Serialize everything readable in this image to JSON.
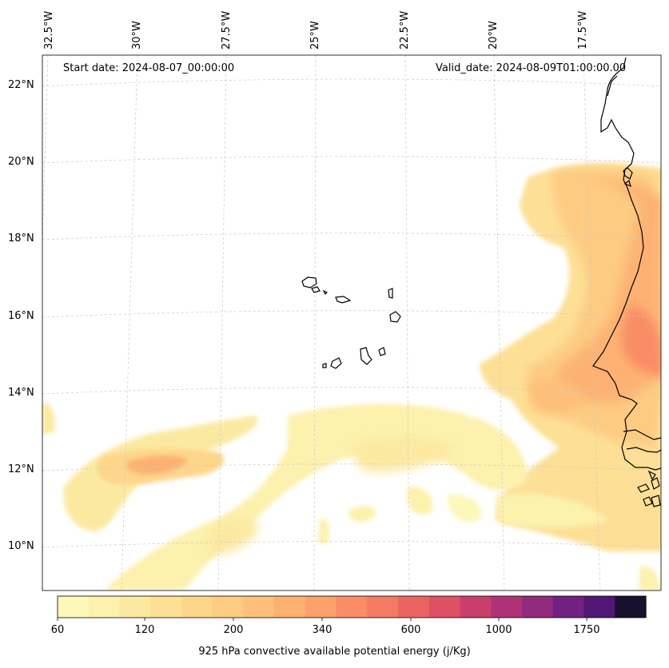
{
  "map": {
    "start_label": "Start date: 2024-08-07_00:00:00",
    "valid_label": "Valid_date: 2024-08-09T01:00:00.00",
    "lon_labels": [
      "32.5°W",
      "30°W",
      "27.5°W",
      "25°W",
      "22.5°W",
      "20°W",
      "17.5°W"
    ],
    "lat_labels": [
      "22°N",
      "20°N",
      "18°N",
      "16°N",
      "14°N",
      "12°N",
      "10°N"
    ],
    "field": "925 hPa convective available potential energy",
    "extent": {
      "lon_min": -33.5,
      "lon_max": -16.2,
      "lat_min": 8.8,
      "lat_max": 22.8
    }
  },
  "colorbar": {
    "title": "925 hPa convective available potential energy (j/Kg)",
    "tick_labels": [
      "60",
      "120",
      "200",
      "340",
      "600",
      "1000",
      "1750"
    ],
    "colors": [
      "#fcf8b9",
      "#fcf1ad",
      "#fce9a1",
      "#fde096",
      "#fdd68b",
      "#fdcb82",
      "#fdbf79",
      "#fdb072",
      "#fca06c",
      "#f98d66",
      "#f57a63",
      "#ec6462",
      "#df5064",
      "#ca3e6d",
      "#ae3376",
      "#912b7e",
      "#712182",
      "#521775",
      "#19102f"
    ]
  }
}
